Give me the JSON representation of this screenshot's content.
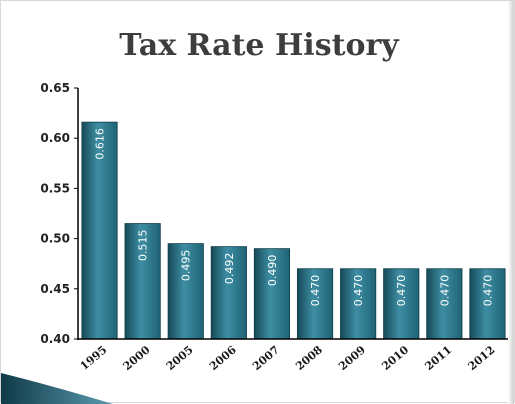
{
  "chart_data": {
    "type": "bar",
    "title": "Tax Rate History",
    "xlabel": "",
    "ylabel": "",
    "categories": [
      "1995",
      "2000",
      "2005",
      "2006",
      "2007",
      "2008",
      "2009",
      "2010",
      "2011",
      "2012"
    ],
    "values": [
      0.616,
      0.515,
      0.495,
      0.492,
      0.49,
      0.47,
      0.47,
      0.47,
      0.47,
      0.47
    ],
    "data_labels": [
      "0.616",
      "0.515",
      "0.495",
      "0.492",
      "0.490",
      "0.470",
      "0.470",
      "0.470",
      "0.470",
      "0.470"
    ],
    "ylim": [
      0.4,
      0.65
    ],
    "yticks": [
      "0.65",
      "0.60",
      "0.55",
      "0.50",
      "0.45",
      "0.40"
    ],
    "ytick_values": [
      0.65,
      0.6,
      0.55,
      0.5,
      0.45,
      0.4
    ],
    "grid": false,
    "legend": "none",
    "colors": {
      "bar": "#1f6375",
      "bar_highlight": "#3e8ea3",
      "bar_dark": "#154a58",
      "axis": "#000000",
      "slide_accent": "#14495a"
    }
  }
}
